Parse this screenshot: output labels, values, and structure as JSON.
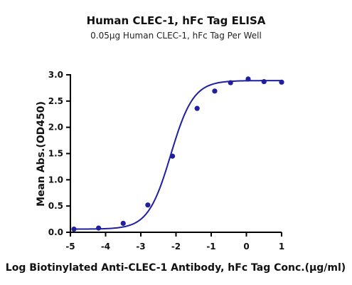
{
  "chart_data": {
    "type": "scatter",
    "title": "Human CLEC-1, hFc Tag ELISA",
    "subtitle": "0.05μg Human CLEC-1, hFc Tag Per Well",
    "xlabel": "Log Biotinylated Anti-CLEC-1 Antibody, hFc Tag Conc.(μg/ml)",
    "ylabel": "Mean Abs.(OD450)",
    "xlim": [
      -5,
      1
    ],
    "ylim": [
      0,
      3.0
    ],
    "xticks": [
      "-5",
      "-4",
      "-3",
      "-2",
      "-1",
      "0",
      "1"
    ],
    "yticks": [
      "0.0",
      "0.5",
      "1.0",
      "1.5",
      "2.0",
      "2.5",
      "3.0"
    ],
    "grid": false,
    "series": [
      {
        "x": [
          -4.9,
          -4.2,
          -3.5,
          -2.8,
          -2.1,
          -1.4,
          -0.9,
          -0.45,
          0.05,
          0.5,
          1.0
        ],
        "y": [
          0.06,
          0.08,
          0.17,
          0.52,
          1.45,
          2.36,
          2.69,
          2.85,
          2.92,
          2.87,
          2.86
        ],
        "fit": {
          "model": "4PL",
          "bottom": 0.06,
          "top": 2.89,
          "logEC50": -2.15,
          "hill": 1.35
        }
      }
    ],
    "colors": {
      "series": "#1f1fa0",
      "axis": "#000000"
    }
  }
}
